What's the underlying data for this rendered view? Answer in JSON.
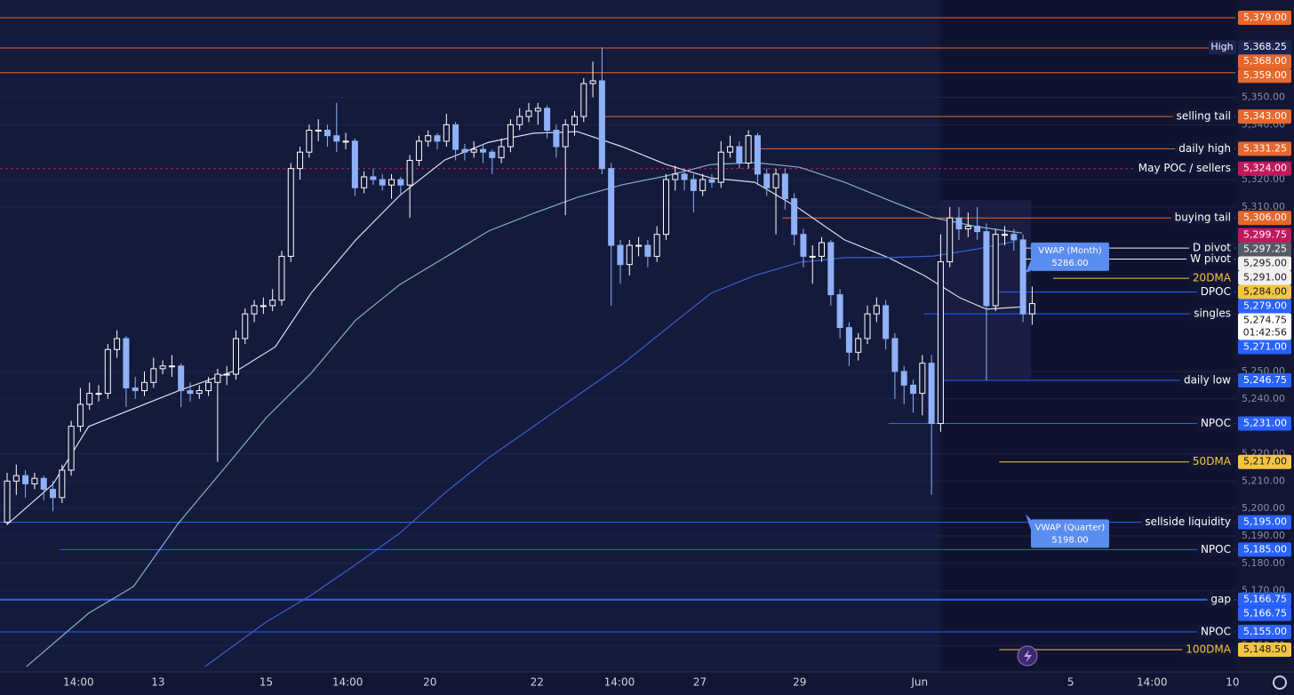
{
  "chart_data": {
    "type": "candlestick",
    "up_color": "#ffffff",
    "down_color": "#8fb1f7",
    "xlim": [
      -0.78,
      134.2
    ],
    "ylim": [
      5140.4,
      5385.5
    ],
    "xticks": [
      {
        "value": 7.8,
        "label": "14:00"
      },
      {
        "value": 16.5,
        "label": "13"
      },
      {
        "value": 28.3,
        "label": "15"
      },
      {
        "value": 37.2,
        "label": "14:00"
      },
      {
        "value": 46.2,
        "label": "20"
      },
      {
        "value": 57.9,
        "label": "22"
      },
      {
        "value": 66.9,
        "label": "14:00"
      },
      {
        "value": 75.7,
        "label": "27"
      },
      {
        "value": 86.6,
        "label": "29"
      },
      {
        "value": 99.7,
        "label": "Jun"
      },
      {
        "value": 116.2,
        "label": "5"
      },
      {
        "value": 125.1,
        "label": "14:00"
      },
      {
        "value": 133.9,
        "label": "10"
      }
    ],
    "yticks": [
      {
        "value": 5350,
        "label": "5,350.00"
      },
      {
        "value": 5340,
        "label": "5,340.00"
      },
      {
        "value": 5320,
        "label": "5,320.00"
      },
      {
        "value": 5310,
        "label": "5,310.00"
      },
      {
        "value": 5250,
        "label": "5,250.00"
      },
      {
        "value": 5240,
        "label": "5,240.00"
      },
      {
        "value": 5220,
        "label": "5,220.00"
      },
      {
        "value": 5210,
        "label": "5,210.00"
      },
      {
        "value": 5200,
        "label": "5,200.00"
      },
      {
        "value": 5190,
        "label": "5,190.00"
      },
      {
        "value": 5180,
        "label": "5,180.00"
      },
      {
        "value": 5170,
        "label": "5,170.00"
      },
      {
        "value": 5150,
        "label": "5,150.00"
      }
    ],
    "candles": [
      [
        5195,
        5213,
        5194,
        5210
      ],
      [
        5210,
        5216,
        5205,
        5212
      ],
      [
        5212,
        5214,
        5204,
        5209
      ],
      [
        5209,
        5213,
        5207,
        5211
      ],
      [
        5211,
        5212,
        5203,
        5207
      ],
      [
        5207,
        5210,
        5199,
        5204
      ],
      [
        5204,
        5216,
        5202,
        5214
      ],
      [
        5214,
        5232,
        5212,
        5230
      ],
      [
        5230,
        5244,
        5228,
        5238
      ],
      [
        5238,
        5246,
        5236,
        5242
      ],
      [
        5242,
        5245,
        5239,
        5242
      ],
      [
        5242,
        5260,
        5240,
        5258
      ],
      [
        5258,
        5265,
        5255,
        5262
      ],
      [
        5262,
        5263,
        5237,
        5244
      ],
      [
        5244,
        5248,
        5240,
        5243
      ],
      [
        5243,
        5250,
        5241,
        5246
      ],
      [
        5246,
        5255,
        5244,
        5251
      ],
      [
        5251,
        5254,
        5249,
        5252
      ],
      [
        5252,
        5256,
        5248,
        5252
      ],
      [
        5252,
        5253,
        5237,
        5243
      ],
      [
        5243,
        5246,
        5239,
        5242
      ],
      [
        5242,
        5245,
        5240,
        5243
      ],
      [
        5243,
        5248,
        5241,
        5246
      ],
      [
        5246,
        5251,
        5217,
        5249
      ],
      [
        5249,
        5252,
        5245,
        5249
      ],
      [
        5249,
        5265,
        5247,
        5262
      ],
      [
        5262,
        5273,
        5260,
        5271
      ],
      [
        5271,
        5276,
        5268,
        5274
      ],
      [
        5274,
        5277,
        5271,
        5274
      ],
      [
        5274,
        5280,
        5272,
        5276
      ],
      [
        5276,
        5294,
        5274,
        5292
      ],
      [
        5292,
        5326,
        5290,
        5324
      ],
      [
        5324,
        5332,
        5320,
        5330
      ],
      [
        5330,
        5340,
        5328,
        5338
      ],
      [
        5338,
        5342,
        5334,
        5338
      ],
      [
        5338,
        5340,
        5332,
        5336
      ],
      [
        5336,
        5348,
        5330,
        5334
      ],
      [
        5334,
        5337,
        5331,
        5334
      ],
      [
        5334,
        5335,
        5314,
        5317
      ],
      [
        5317,
        5323,
        5315,
        5321
      ],
      [
        5321,
        5324,
        5318,
        5320
      ],
      [
        5320,
        5322,
        5316,
        5318
      ],
      [
        5318,
        5322,
        5313,
        5320
      ],
      [
        5320,
        5321,
        5314,
        5318
      ],
      [
        5318,
        5329,
        5306,
        5327
      ],
      [
        5327,
        5336,
        5325,
        5334
      ],
      [
        5334,
        5338,
        5332,
        5336
      ],
      [
        5336,
        5337,
        5331,
        5334
      ],
      [
        5334,
        5344,
        5332,
        5340
      ],
      [
        5340,
        5341,
        5327,
        5331
      ],
      [
        5331,
        5333,
        5327,
        5330
      ],
      [
        5330,
        5334,
        5328,
        5331
      ],
      [
        5331,
        5333,
        5326,
        5330
      ],
      [
        5330,
        5331,
        5322,
        5328
      ],
      [
        5328,
        5335,
        5326,
        5332
      ],
      [
        5332,
        5342,
        5330,
        5340
      ],
      [
        5340,
        5346,
        5338,
        5343
      ],
      [
        5343,
        5348,
        5341,
        5345
      ],
      [
        5345,
        5348,
        5340,
        5346
      ],
      [
        5346,
        5347,
        5335,
        5338
      ],
      [
        5338,
        5340,
        5328,
        5332
      ],
      [
        5332,
        5342,
        5307,
        5340
      ],
      [
        5340,
        5345,
        5336,
        5343
      ],
      [
        5343,
        5357,
        5341,
        5355
      ],
      [
        5355,
        5363,
        5350,
        5356
      ],
      [
        5356,
        5368.25,
        5322,
        5324
      ],
      [
        5324,
        5326,
        5274,
        5296
      ],
      [
        5296,
        5298,
        5282,
        5289
      ],
      [
        5289,
        5298,
        5285,
        5296
      ],
      [
        5296,
        5299,
        5292,
        5296
      ],
      [
        5296,
        5298,
        5288,
        5292
      ],
      [
        5292,
        5303,
        5290,
        5300
      ],
      [
        5300,
        5322,
        5298,
        5320
      ],
      [
        5320,
        5325,
        5316,
        5322
      ],
      [
        5322,
        5324,
        5316,
        5320
      ],
      [
        5320,
        5322,
        5308,
        5316
      ],
      [
        5316,
        5322,
        5314,
        5320
      ],
      [
        5320,
        5322,
        5317,
        5319
      ],
      [
        5319,
        5334,
        5317,
        5330
      ],
      [
        5330,
        5336,
        5328,
        5332
      ],
      [
        5332,
        5334,
        5324,
        5326
      ],
      [
        5326,
        5338,
        5324,
        5336
      ],
      [
        5336,
        5337,
        5318,
        5322
      ],
      [
        5322,
        5324,
        5314,
        5317
      ],
      [
        5317,
        5324,
        5300,
        5322
      ],
      [
        5322,
        5324,
        5309,
        5313
      ],
      [
        5313,
        5315,
        5296,
        5300
      ],
      [
        5300,
        5302,
        5288,
        5292
      ],
      [
        5292,
        5296,
        5282,
        5292
      ],
      [
        5292,
        5299,
        5290,
        5297
      ],
      [
        5297,
        5298,
        5274,
        5278
      ],
      [
        5278,
        5280,
        5262,
        5266
      ],
      [
        5266,
        5268,
        5252,
        5257
      ],
      [
        5257,
        5264,
        5254,
        5262
      ],
      [
        5262,
        5274,
        5260,
        5271
      ],
      [
        5271,
        5277,
        5268,
        5274
      ],
      [
        5274,
        5276,
        5258,
        5262
      ],
      [
        5262,
        5264,
        5240,
        5250
      ],
      [
        5250,
        5252,
        5238,
        5245
      ],
      [
        5245,
        5247,
        5235,
        5242
      ],
      [
        5242,
        5256,
        5234,
        5253
      ],
      [
        5253,
        5256,
        5205,
        5231
      ],
      [
        5231,
        5300,
        5228,
        5290
      ],
      [
        5290,
        5310,
        5288,
        5306
      ],
      [
        5306,
        5310,
        5298,
        5302
      ],
      [
        5302,
        5308,
        5299,
        5303
      ],
      [
        5303,
        5310,
        5298,
        5301
      ],
      [
        5301,
        5304,
        5246.75,
        5274
      ],
      [
        5274,
        5302,
        5272,
        5300
      ],
      [
        5300,
        5303,
        5296,
        5300
      ],
      [
        5300,
        5302,
        5294,
        5298
      ],
      [
        5298,
        5300,
        5268,
        5271
      ],
      [
        5271,
        5281,
        5267,
        5274.75
      ]
    ],
    "lines": [
      {
        "color": "#d8dce8",
        "x": [
          0,
          5,
          8.9,
          18.6,
          25.4,
          29.3,
          33.2,
          38.1,
          42.9,
          47.8,
          52.6,
          57.5,
          62.3,
          67.2,
          72,
          76.9,
          81.7,
          86.6,
          91.5,
          96.3,
          100.2,
          104.1,
          107,
          110.9
        ],
        "values": [
          5194.2,
          5208.8,
          5229.9,
          5242.8,
          5250.9,
          5259,
          5278.5,
          5298,
          5314.2,
          5327.1,
          5333.6,
          5336.9,
          5337.5,
          5332,
          5325.5,
          5320.6,
          5319,
          5309.3,
          5298,
          5291.5,
          5285,
          5276.9,
          5272.7,
          5273.6
        ]
      },
      {
        "color": "#7fb3c8",
        "x": [
          2.1,
          8.9,
          13.8,
          18.6,
          23.5,
          28.3,
          33.2,
          38.1,
          42.9,
          47.8,
          52.6,
          57.5,
          62.3,
          67.2,
          72,
          76.9,
          81.7,
          86.6,
          91.5,
          96.3,
          101.2,
          106,
          110.9
        ],
        "values": [
          5142.3,
          5161.8,
          5171.5,
          5194.2,
          5213.7,
          5233.1,
          5249.3,
          5268.8,
          5281.7,
          5291.5,
          5301.2,
          5307.7,
          5313.5,
          5318.1,
          5321.3,
          5325.5,
          5326.2,
          5324.5,
          5319,
          5312.5,
          5306.1,
          5302.8,
          5300.5
        ]
      },
      {
        "color": "#3a5fd0",
        "x": [
          21.6,
          28.3,
          33.2,
          38.1,
          42.9,
          47.8,
          52.6,
          57.5,
          62.3,
          67.2,
          72,
          76.9,
          81.7,
          86.6,
          91.5,
          96.3,
          101.2,
          106,
          109.9
        ],
        "values": [
          5142.3,
          5158.6,
          5168.3,
          5179.6,
          5191,
          5205.6,
          5218.5,
          5229.9,
          5241.2,
          5252.6,
          5265.5,
          5278.5,
          5285,
          5289.8,
          5291.5,
          5291.5,
          5292.1,
          5294.7,
          5297.3
        ]
      }
    ],
    "levels": [
      {
        "value": 5379,
        "tag": "5,379.00",
        "color": "#e8672a",
        "from": -0.78
      },
      {
        "value": 5368.25,
        "tag": "5,368.25",
        "color": "#1b2350",
        "name": "High"
      },
      {
        "value": 5368,
        "tag": "5,368.00",
        "color": "#e8672a",
        "from": -0.78
      },
      {
        "value": 5359,
        "tag": "5,359.00",
        "color": "#e8672a",
        "from": -0.78
      },
      {
        "value": 5343,
        "tag": "5,343.00",
        "color": "#e8672a",
        "from": 65.2,
        "text": "selling tail"
      },
      {
        "value": 5331.25,
        "tag": "5,331.25",
        "color": "#e8672a",
        "from": 82.2,
        "text": "daily high"
      },
      {
        "value": 5324,
        "tag": "5,324.00",
        "color": "#c2185b",
        "from": -0.78,
        "text": "May POC / sellers",
        "dash": true
      },
      {
        "value": 5306,
        "tag": "5,306.00",
        "color": "#e8672a",
        "from": 84.7,
        "text": "buying tail"
      },
      {
        "value": 5299.75,
        "tag": "5,299.75",
        "color": "#c2185b"
      },
      {
        "value": 5297.25,
        "tag": "5,297.25",
        "color": "#555a66"
      },
      {
        "value": 5295,
        "tag": "5,295.00",
        "color": "#f0f0f0",
        "from": 110.9,
        "text": "D pivot"
      },
      {
        "value": 5291,
        "tag": "5,291.00",
        "color": "#f0f0f0",
        "from": 110.9,
        "text": "W pivot"
      },
      {
        "value": 5284,
        "tag": "5,284.00",
        "color": "#f5c542",
        "from": 114.3,
        "text": "20DMA"
      },
      {
        "value": 5279,
        "tag": "5,279.00",
        "color": "#2962ff",
        "from": 108.4,
        "text": "DPOC"
      },
      {
        "value": 5274.75,
        "tag": "5,274.75",
        "color": "#ffffff",
        "countdown": "01:42:56"
      },
      {
        "value": 5271,
        "tag": "5,271.00",
        "color": "#2962ff",
        "from": 100.2,
        "text": "singles"
      },
      {
        "value": 5246.75,
        "tag": "5,246.75",
        "color": "#2962ff",
        "from": 102.1,
        "text": "daily low"
      },
      {
        "value": 5231,
        "tag": "5,231.00",
        "color": "#2962ff",
        "from": 96.3,
        "text": "NPOC"
      },
      {
        "value": 5217,
        "tag": "5,217.00",
        "color": "#f5c542",
        "from": 108.4,
        "text": "50DMA"
      },
      {
        "value": 5195,
        "tag": "5,195.00",
        "color": "#2962ff",
        "from": -0.78,
        "text": "sellside liquidity"
      },
      {
        "value": 5185,
        "tag": "5,185.00",
        "color": "#2962ff",
        "from": 5.8,
        "text": "NPOC"
      },
      {
        "value": 5166.75,
        "tag": "5,166.75",
        "color": "#2962ff",
        "from": -0.78,
        "text": "gap",
        "thick": true
      },
      {
        "value": 5166.75,
        "tag": "5,166.75",
        "color": "#2962ff"
      },
      {
        "value": 5155,
        "tag": "5,155.00",
        "color": "#2962ff",
        "from": -0.78,
        "text": "NPOC"
      },
      {
        "value": 5148.5,
        "tag": "5,148.50",
        "color": "#f5c542",
        "from": 108.4,
        "text": "100DMA"
      }
    ],
    "annotations": [
      {
        "title": "VWAP (Month)",
        "value": 5286,
        "label": "5286.00"
      },
      {
        "title": "VWAP (Quarter)",
        "value": 5198,
        "label": "5198.00"
      }
    ]
  }
}
